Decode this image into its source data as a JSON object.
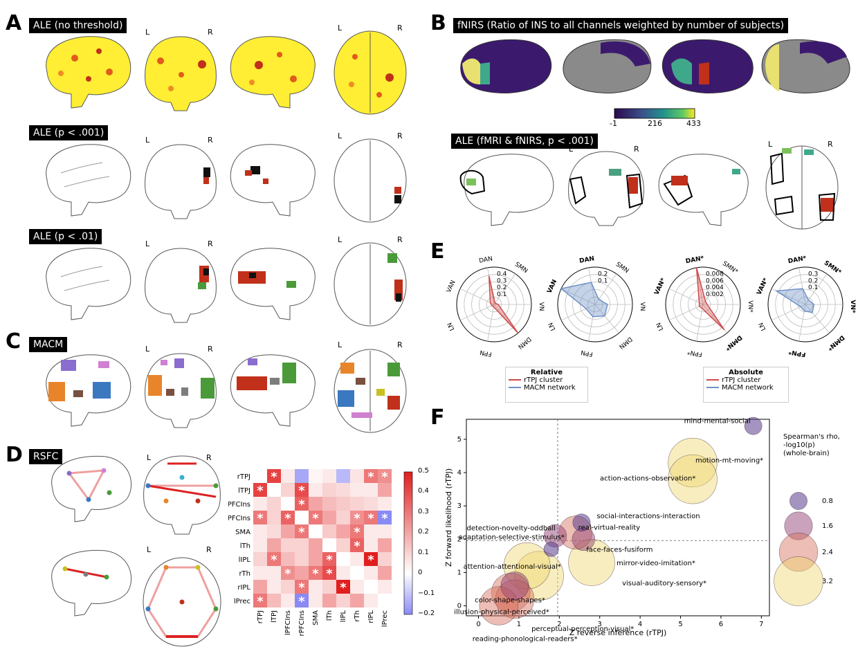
{
  "panelA": {
    "letter": "A",
    "row1_tag": "ALE (no threshold)",
    "row2_tag": "ALE (p < .001)",
    "row3_tag": "ALE (p < .01)",
    "L": "L",
    "R": "R"
  },
  "panelB": {
    "letter": "B",
    "tag": "fNIRS (Ratio of INS to all channels weighted by number of subjects)",
    "colorbar_ticks": [
      "-1",
      "216",
      "433"
    ],
    "tag2": "ALE (fMRI & fNIRS, p < .001)"
  },
  "panelC": {
    "letter": "C",
    "tag": "MACM"
  },
  "panelD": {
    "letter": "D",
    "tag": "RSFC",
    "matrix_labels": [
      "rTPJ",
      "lTPJ",
      "lPFCIns",
      "rPFCIns",
      "SMA",
      "lTh",
      "lIPL",
      "rTh",
      "rIPL",
      "lPrec"
    ],
    "colorbar_ticks": [
      "0.5",
      "0.4",
      "0.3",
      "0.2",
      "0.1",
      "0",
      "−0.1",
      "−0.2"
    ]
  },
  "panelE": {
    "letter": "E",
    "axes": [
      "DAN",
      "SMN",
      "VN",
      "DMN",
      "FPN",
      "LN",
      "VAN"
    ],
    "axes_starred": [
      "DAN*",
      "SMN*",
      "VN*",
      "DMN*",
      "FPN*",
      "LN",
      "VAN*"
    ],
    "radar1_ticks": [
      "0.4",
      "0.3",
      "0.2",
      "0.1"
    ],
    "radar2_ticks": [
      "0.2",
      "0.1"
    ],
    "radar3_ticks": [
      "0.008",
      "0.006",
      "0.004",
      "0.002"
    ],
    "radar4_ticks": [
      "0.3",
      "0.2",
      "0.1"
    ],
    "legend1": {
      "title": "Relative",
      "item1": "rTPJ cluster",
      "item2": "MACM network"
    },
    "legend2": {
      "title": "Absolute",
      "item1": "rTPJ cluster",
      "item2": "MACM network"
    },
    "colors": {
      "rtpj": "#d04a4a",
      "macm": "#6f90c8"
    }
  },
  "panelF": {
    "letter": "F",
    "xlabel": "Z reverse inference (rTPJ)",
    "ylabel": "Z forward likelihood (rTPJ)",
    "xticks": [
      "0",
      "1",
      "2",
      "3",
      "4",
      "5",
      "6",
      "7"
    ],
    "yticks": [
      "0",
      "1",
      "2",
      "3",
      "4",
      "5"
    ],
    "size_legend_title": [
      "Spearman's rho,",
      "-log10(p)",
      "(whole-brain)"
    ],
    "size_legend_values": [
      "0.8",
      "1.6",
      "2.4",
      "3.2"
    ],
    "labels": {
      "mind": "mind-mental-social",
      "motion": "motion-mt-moving*",
      "action": "action-actions-observation*",
      "social": "social-interactions-interaction",
      "detection": "detection-novelty-oddball",
      "real": "real-virtual-reality",
      "face": "face-faces-fusiform",
      "adaptation": "adaptation-selective-stimulus*",
      "mirror": "mirror-video-imitation*",
      "attention": "attention-attentional-visual*",
      "visual": "visual-auditory-sensory*",
      "color": "color-shape-shapes*",
      "illusion": "illusion-physical-perceived*",
      "perceptual": "perceptual-perception-visual*",
      "reading": "reading-phonological-readers*"
    }
  },
  "chart_data": {
    "type": "scatter",
    "xlabel": "Z reverse inference (rTPJ)",
    "ylabel": "Z forward likelihood (rTPJ)",
    "xlim": [
      -0.3,
      7.2
    ],
    "ylim": [
      -0.3,
      5.6
    ],
    "points": [
      {
        "label": "mind-mental-social",
        "x": 6.8,
        "y": 5.4,
        "size": 0.8
      },
      {
        "label": "motion-mt-moving*",
        "x": 5.3,
        "y": 4.3,
        "size": 3.2
      },
      {
        "label": "action-actions-observation*",
        "x": 5.3,
        "y": 3.8,
        "size": 3.2
      },
      {
        "label": "social-interactions-interaction",
        "x": 2.55,
        "y": 2.5,
        "size": 0.8
      },
      {
        "label": "detection-novelty-oddball",
        "x": 1.9,
        "y": 2.1,
        "size": 1.2
      },
      {
        "label": "real-virtual-reality",
        "x": 2.4,
        "y": 2.2,
        "size": 2.0
      },
      {
        "label": "face-faces-fusiform",
        "x": 2.6,
        "y": 2.0,
        "size": 1.2
      },
      {
        "label": "adaptation-selective-stimulus*",
        "x": 1.8,
        "y": 1.7,
        "size": 0.6
      },
      {
        "label": "mirror-video-imitation*",
        "x": 2.8,
        "y": 1.3,
        "size": 3.0
      },
      {
        "label": "attention-attentional-visual*",
        "x": 1.2,
        "y": 1.2,
        "size": 3.0
      },
      {
        "label": "visual-auditory-sensory*",
        "x": 1.5,
        "y": 0.9,
        "size": 3.2
      },
      {
        "label": "color-shape-shapes*",
        "x": 0.9,
        "y": 0.6,
        "size": 1.6
      },
      {
        "label": "illusion-physical-perceived*",
        "x": 0.8,
        "y": 0.4,
        "size": 2.4
      },
      {
        "label": "perceptual-perception-visual*",
        "x": 0.9,
        "y": 0.2,
        "size": 2.4
      },
      {
        "label": "reading-phonological-readers*",
        "x": 0.5,
        "y": 0.0,
        "size": 2.4
      }
    ],
    "ref_lines": {
      "x": 1.96,
      "y": 1.96
    },
    "legend_placement": "right"
  }
}
